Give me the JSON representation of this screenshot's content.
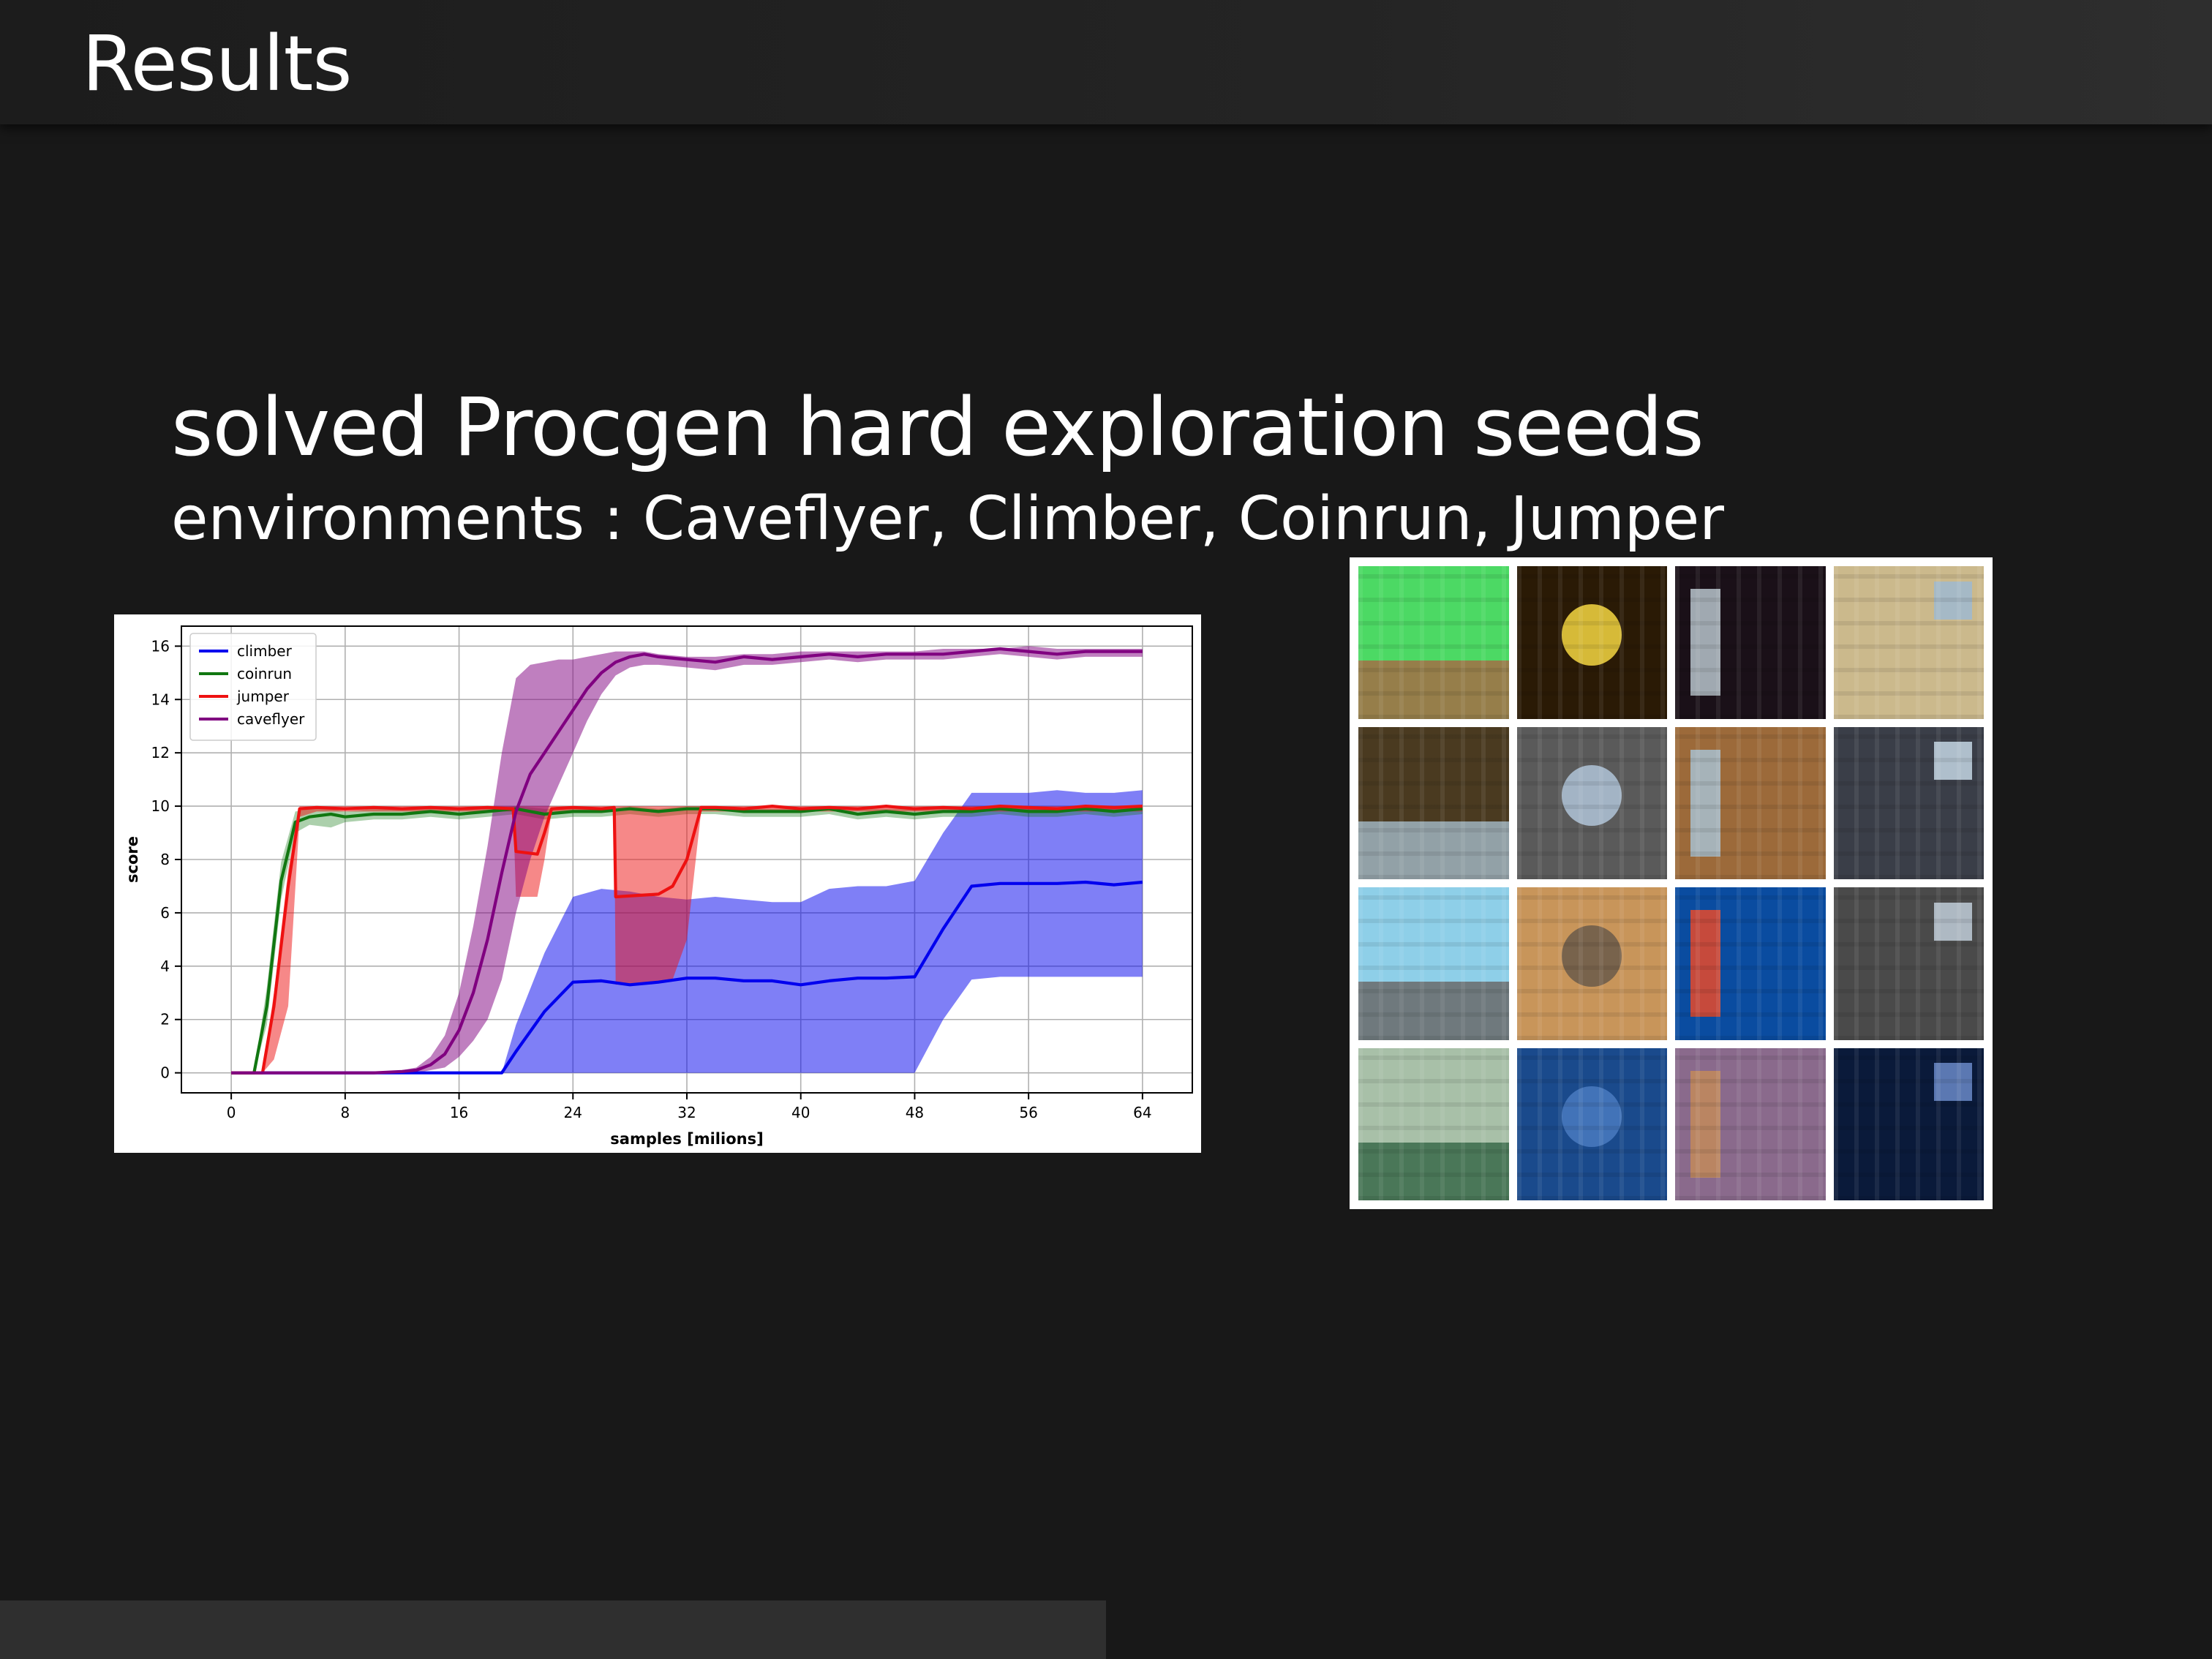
{
  "slide": {
    "title": "Results",
    "headline": "solved Procgen hard exploration seeds",
    "subline": "environments : Caveflyer, Climber, Coinrun, Jumper"
  },
  "colors": {
    "climber": "#0000ee",
    "coinrun": "#117711",
    "jumper": "#ee1111",
    "caveflyer": "#800080"
  },
  "chart_data": {
    "type": "line",
    "title": "",
    "xlabel": "samples [milions]",
    "ylabel": "score",
    "xlim": [
      -3.5,
      67.5
    ],
    "ylim": [
      -0.75,
      16.75
    ],
    "xticks": [
      0,
      8,
      16,
      24,
      32,
      40,
      48,
      56,
      64
    ],
    "yticks": [
      0,
      2,
      4,
      6,
      8,
      10,
      12,
      14,
      16
    ],
    "grid": true,
    "legend": "top-left",
    "series": [
      {
        "name": "climber",
        "x": [
          0,
          19,
          20,
          22,
          24,
          26,
          28,
          30,
          32,
          34,
          36,
          38,
          40,
          42,
          44,
          46,
          48,
          50,
          52,
          54,
          56,
          58,
          60,
          62,
          64
        ],
        "y": [
          0,
          0,
          0.8,
          2.3,
          3.4,
          3.45,
          3.3,
          3.4,
          3.55,
          3.55,
          3.45,
          3.45,
          3.3,
          3.45,
          3.55,
          3.55,
          3.6,
          5.4,
          7.0,
          7.1,
          7.1,
          7.1,
          7.15,
          7.05,
          7.15
        ],
        "upper": [
          0,
          0,
          1.8,
          4.5,
          6.6,
          6.9,
          6.8,
          6.6,
          6.5,
          6.6,
          6.5,
          6.4,
          6.4,
          6.9,
          7.0,
          7.0,
          7.2,
          9.0,
          10.5,
          10.5,
          10.5,
          10.6,
          10.5,
          10.5,
          10.6
        ],
        "lower": [
          0,
          0,
          0,
          0,
          0,
          0,
          0,
          0,
          0,
          0,
          0,
          0,
          0,
          0,
          0,
          0,
          0,
          2.0,
          3.5,
          3.6,
          3.6,
          3.6,
          3.6,
          3.6,
          3.6
        ]
      },
      {
        "name": "coinrun",
        "x": [
          0,
          1.6,
          2.5,
          3.5,
          4.5,
          5.5,
          7,
          8,
          10,
          12,
          14,
          16,
          18,
          20,
          22,
          24,
          26,
          28,
          30,
          32,
          34,
          36,
          38,
          40,
          42,
          44,
          46,
          48,
          50,
          52,
          54,
          56,
          58,
          60,
          62,
          64
        ],
        "y": [
          0,
          0,
          2.5,
          7.2,
          9.4,
          9.6,
          9.7,
          9.6,
          9.7,
          9.7,
          9.8,
          9.7,
          9.8,
          9.9,
          9.7,
          9.8,
          9.8,
          9.9,
          9.8,
          9.9,
          9.9,
          9.8,
          9.8,
          9.8,
          9.9,
          9.7,
          9.8,
          9.7,
          9.8,
          9.8,
          9.9,
          9.8,
          9.8,
          9.9,
          9.8,
          9.9
        ],
        "upper": [
          0,
          0,
          3.2,
          7.9,
          9.8,
          9.9,
          9.9,
          9.8,
          9.9,
          9.9,
          9.9,
          9.9,
          9.9,
          10.0,
          9.9,
          9.9,
          9.9,
          10.0,
          9.9,
          10.0,
          10.0,
          9.9,
          9.9,
          9.9,
          10.0,
          9.9,
          9.9,
          9.9,
          9.9,
          9.9,
          10.0,
          9.9,
          9.9,
          10.0,
          9.9,
          10.0
        ],
        "lower": [
          0,
          0,
          1.8,
          6.5,
          9.0,
          9.3,
          9.2,
          9.4,
          9.5,
          9.5,
          9.6,
          9.5,
          9.6,
          9.7,
          9.5,
          9.6,
          9.6,
          9.7,
          9.6,
          9.7,
          9.7,
          9.6,
          9.6,
          9.6,
          9.7,
          9.5,
          9.6,
          9.5,
          9.6,
          9.6,
          9.7,
          9.6,
          9.6,
          9.7,
          9.6,
          9.7
        ]
      },
      {
        "name": "jumper",
        "x": [
          0,
          2.2,
          3,
          4,
          4.8,
          6,
          8,
          10,
          12,
          14,
          16,
          18,
          19.8,
          20,
          21.5,
          22,
          22.5,
          24,
          26,
          26.9,
          27,
          30,
          31,
          32,
          33,
          34,
          36,
          38,
          40,
          42,
          44,
          46,
          48,
          50,
          52,
          54,
          56,
          58,
          60,
          62,
          64
        ],
        "y": [
          0,
          0,
          2.5,
          7.0,
          9.9,
          9.95,
          9.9,
          9.95,
          9.9,
          9.95,
          9.9,
          9.95,
          9.9,
          8.3,
          8.2,
          9.0,
          9.9,
          9.95,
          9.9,
          9.95,
          6.6,
          6.7,
          7.0,
          8.0,
          9.95,
          9.95,
          9.9,
          10.0,
          9.9,
          9.95,
          9.9,
          10.0,
          9.9,
          9.95,
          9.9,
          10.0,
          9.95,
          9.9,
          10.0,
          9.95,
          10.0
        ],
        "upper": [
          0,
          0,
          3.0,
          7.6,
          10.0,
          10.0,
          10.0,
          10.0,
          10.0,
          10.0,
          10.0,
          10.0,
          10.0,
          10.0,
          10.0,
          10.0,
          10.0,
          10.0,
          10.0,
          10.0,
          10.0,
          10.0,
          10.0,
          10.0,
          10.0,
          10.0,
          10.0,
          10.0,
          10.0,
          10.0,
          10.0,
          10.0,
          10.0,
          10.0,
          10.0,
          10.0,
          10.0,
          10.0,
          10.0,
          10.0,
          10.0
        ],
        "lower": [
          0,
          0,
          0.5,
          2.5,
          9.6,
          9.8,
          9.8,
          9.8,
          9.8,
          9.8,
          9.8,
          9.8,
          9.8,
          6.6,
          6.6,
          8.0,
          9.8,
          9.8,
          9.8,
          9.8,
          3.3,
          3.4,
          3.5,
          5.0,
          9.8,
          9.8,
          9.8,
          9.8,
          9.8,
          9.8,
          9.8,
          9.8,
          9.8,
          9.8,
          9.8,
          9.8,
          9.8,
          9.8,
          9.8,
          9.8,
          9.8
        ]
      },
      {
        "name": "caveflyer",
        "x": [
          0,
          10,
          12,
          13,
          14,
          15,
          16,
          17,
          18,
          19,
          20,
          21,
          22,
          23,
          24,
          25,
          26,
          27,
          28,
          29,
          30,
          32,
          34,
          36,
          38,
          40,
          42,
          44,
          46,
          48,
          50,
          52,
          54,
          56,
          58,
          60,
          62,
          64
        ],
        "y": [
          0,
          0,
          0.05,
          0.1,
          0.3,
          0.7,
          1.6,
          3.0,
          5.0,
          7.5,
          9.8,
          11.2,
          12.0,
          12.8,
          13.6,
          14.4,
          15.0,
          15.4,
          15.6,
          15.7,
          15.6,
          15.5,
          15.4,
          15.6,
          15.5,
          15.6,
          15.7,
          15.6,
          15.7,
          15.7,
          15.7,
          15.8,
          15.9,
          15.8,
          15.7,
          15.8,
          15.8,
          15.8
        ],
        "upper": [
          0,
          0,
          0.1,
          0.2,
          0.6,
          1.4,
          3.0,
          5.5,
          8.5,
          12.0,
          14.8,
          15.3,
          15.4,
          15.5,
          15.5,
          15.6,
          15.7,
          15.8,
          15.8,
          15.8,
          15.7,
          15.6,
          15.6,
          15.7,
          15.7,
          15.8,
          15.8,
          15.8,
          15.8,
          15.8,
          15.9,
          15.9,
          15.9,
          16.0,
          15.9,
          15.9,
          15.9,
          15.9
        ],
        "lower": [
          0,
          0,
          0,
          0,
          0.1,
          0.2,
          0.6,
          1.2,
          2.0,
          3.5,
          6.0,
          8.0,
          9.6,
          10.8,
          12.0,
          13.2,
          14.2,
          14.9,
          15.2,
          15.3,
          15.3,
          15.2,
          15.1,
          15.3,
          15.3,
          15.4,
          15.5,
          15.4,
          15.5,
          15.5,
          15.5,
          15.6,
          15.7,
          15.6,
          15.5,
          15.6,
          15.6,
          15.6
        ]
      }
    ]
  },
  "thumbnails": {
    "tiles": [
      {
        "name": "thumbnail-platformer-trees",
        "bg": "#4cd964",
        "accent": "#a36d45"
      },
      {
        "name": "thumbnail-starpilot-space",
        "bg": "#2a1a05",
        "accent": "#f5d742"
      },
      {
        "name": "thumbnail-caveflyer-space",
        "bg": "#1a1018",
        "accent": "#b9c4cc"
      },
      {
        "name": "thumbnail-heist-sand",
        "bg": "#cbb98c",
        "accent": "#9fb8d0"
      },
      {
        "name": "thumbnail-climber-dirt",
        "bg": "#4a3a20",
        "accent": "#9fb4c0"
      },
      {
        "name": "thumbnail-chaser-maze",
        "bg": "#5a5a5a",
        "accent": "#b0c4d8"
      },
      {
        "name": "thumbnail-miner-dirt",
        "bg": "#9c6a3a",
        "accent": "#a8bfd0"
      },
      {
        "name": "thumbnail-leaper-ice",
        "bg": "#3a3e48",
        "accent": "#c4d6e4"
      },
      {
        "name": "thumbnail-bigfish-road",
        "bg": "#8ecfe8",
        "accent": "#6a6a6a"
      },
      {
        "name": "thumbnail-maze-sand",
        "bg": "#c8955a",
        "accent": "#6a5a4a"
      },
      {
        "name": "thumbnail-bigfish-ocean",
        "bg": "#0a4ca0",
        "accent": "#e84a2a"
      },
      {
        "name": "thumbnail-plunder-maze",
        "bg": "#4a4a4a",
        "accent": "#c0ccd8"
      },
      {
        "name": "thumbnail-ninja-forest",
        "bg": "#a8c0a8",
        "accent": "#3a6a4a"
      },
      {
        "name": "thumbnail-dodgeball-water",
        "bg": "#1a4a8c",
        "accent": "#4a7ac0"
      },
      {
        "name": "thumbnail-fruitbot-purple",
        "bg": "#8a6a8c",
        "accent": "#c28a5a"
      },
      {
        "name": "thumbnail-bossfight-space",
        "bg": "#0a1a3a",
        "accent": "#6a8ac8"
      }
    ]
  }
}
